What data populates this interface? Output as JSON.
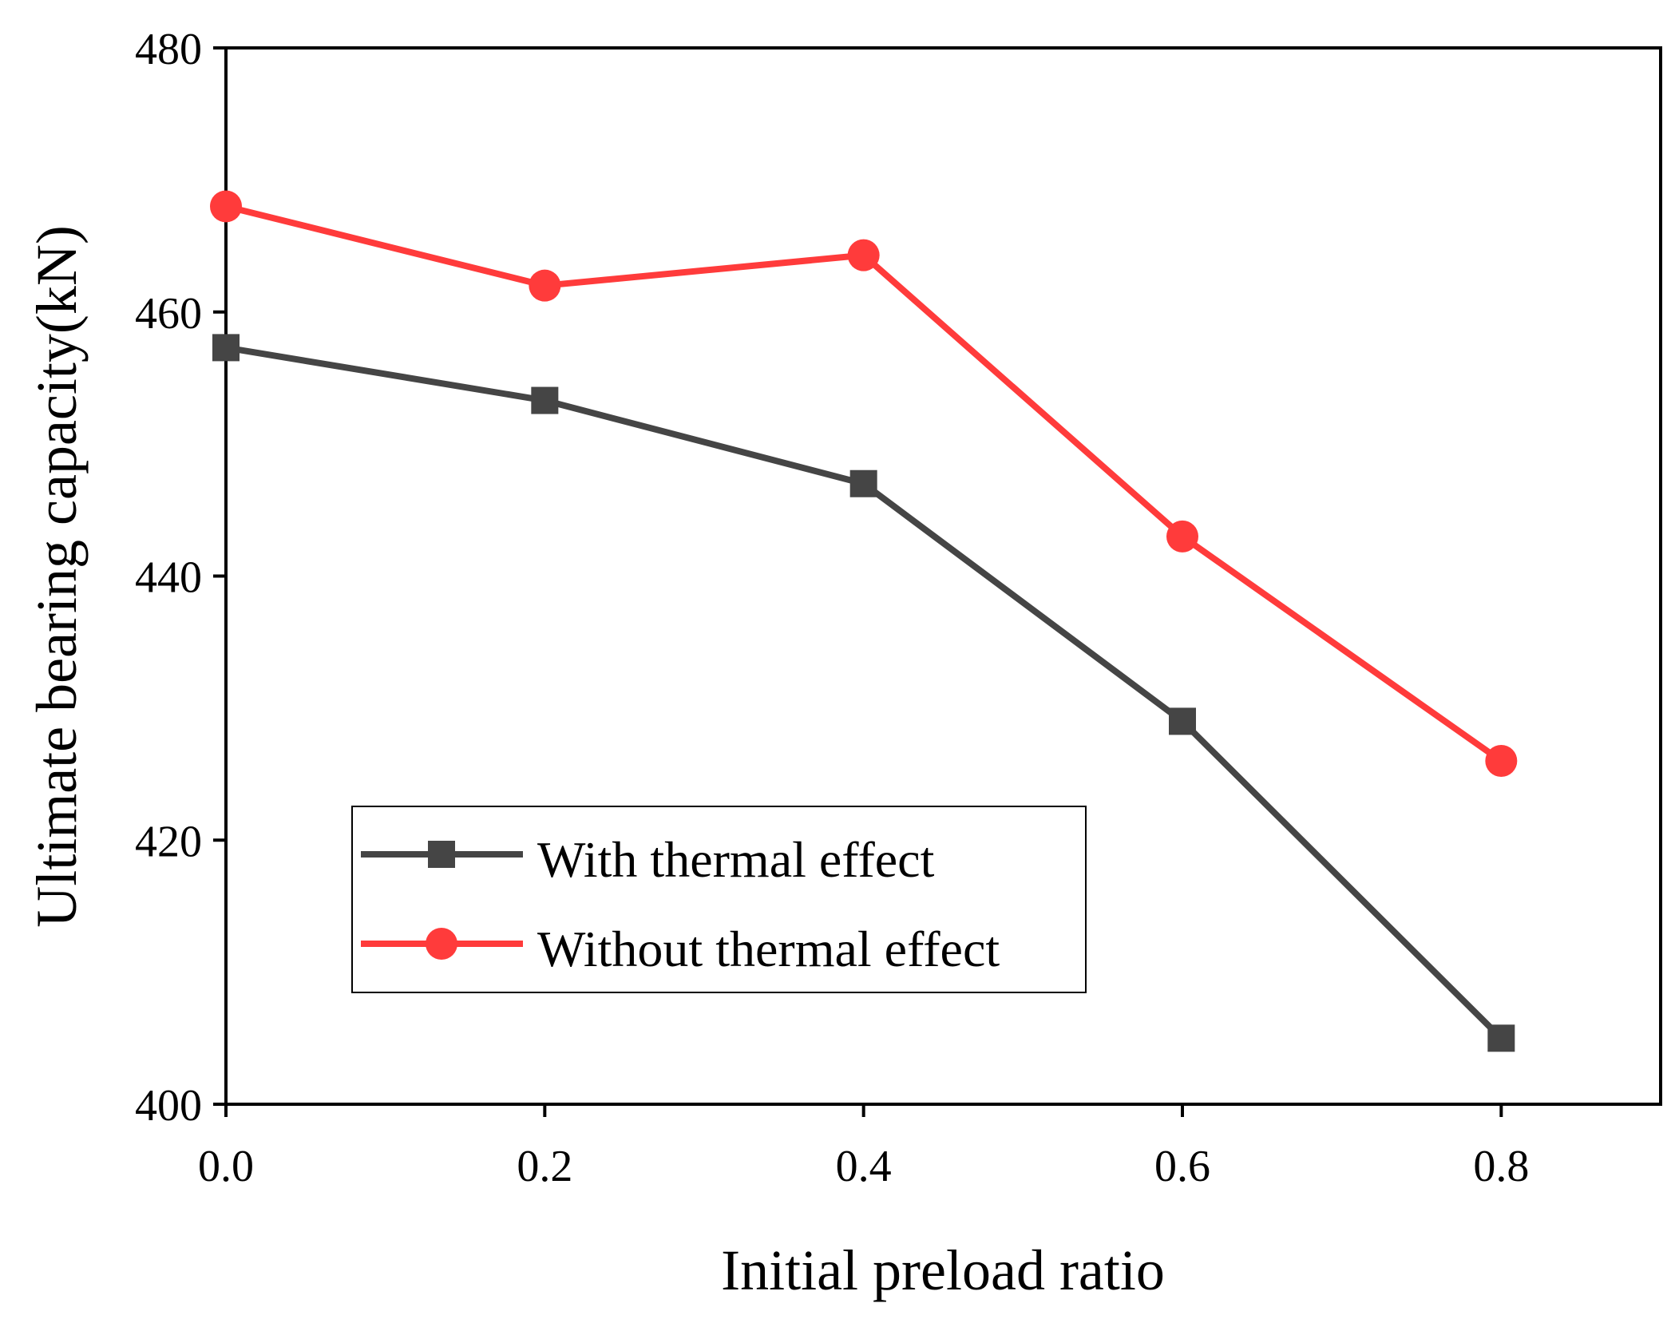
{
  "chart_data": {
    "type": "line",
    "title": "",
    "xlabel": "Initial preload ratio",
    "ylabel": "Ultimate bearing capacity(kN)",
    "xlim": [
      0.0,
      0.9
    ],
    "ylim": [
      400,
      480
    ],
    "xticks": [
      0.0,
      0.2,
      0.4,
      0.6,
      0.8
    ],
    "xtick_labels": [
      "0.0",
      "0.2",
      "0.4",
      "0.6",
      "0.8"
    ],
    "yticks": [
      400,
      420,
      440,
      460,
      480
    ],
    "ytick_labels": [
      "400",
      "420",
      "440",
      "460",
      "480"
    ],
    "x": [
      0.0,
      0.2,
      0.4,
      0.6,
      0.8
    ],
    "grid": false,
    "legend_position": "lower-left",
    "series": [
      {
        "name": "With thermal effect",
        "marker": "square",
        "color": "#454545",
        "values": [
          457.3,
          453.3,
          447.0,
          429.0,
          405.0
        ]
      },
      {
        "name": "Without thermal effect",
        "marker": "circle",
        "color": "#ff3b3b",
        "values": [
          468.0,
          462.0,
          464.3,
          443.0,
          426.0
        ]
      }
    ]
  }
}
